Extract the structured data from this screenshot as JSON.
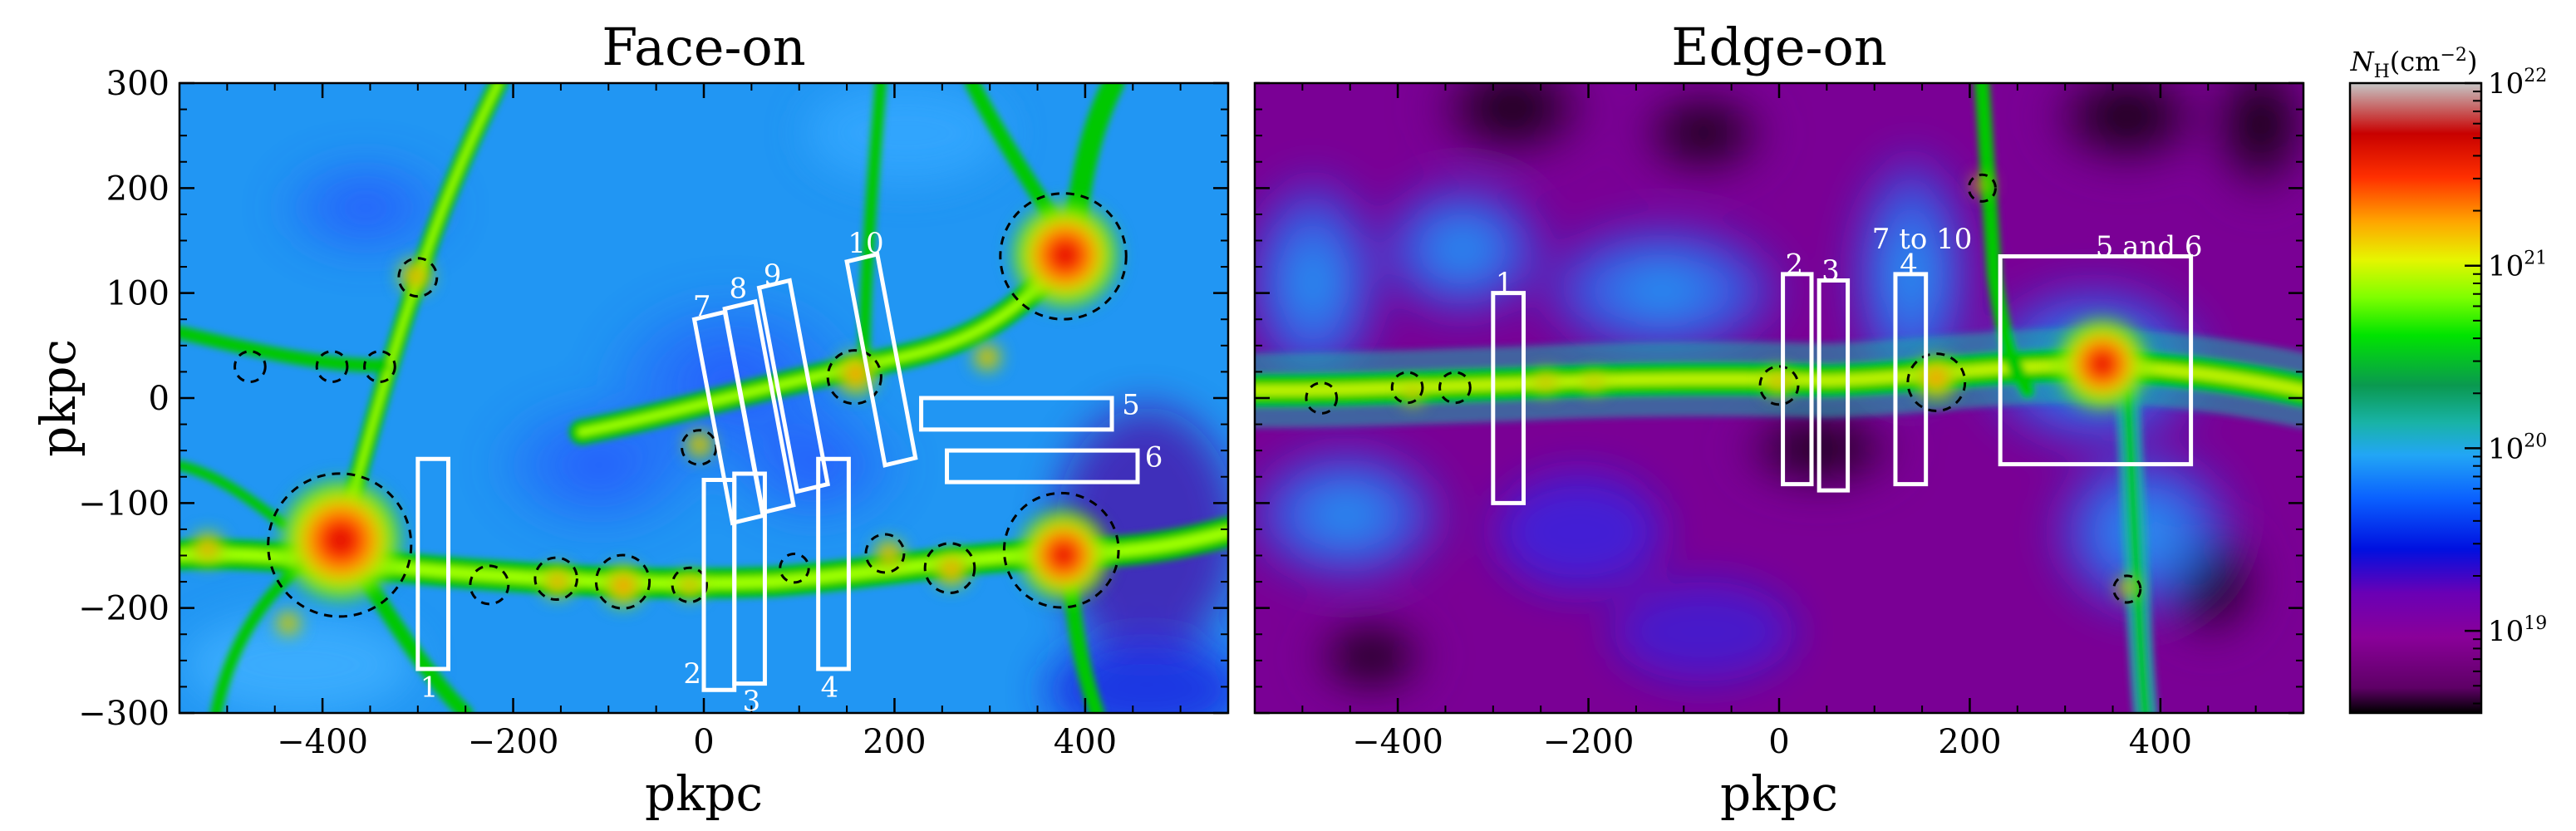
{
  "panels": [
    {
      "title": "Face-on",
      "xlabel": "pkpc",
      "ylabel": "pkpc",
      "xlim": [
        -550,
        550
      ],
      "ylim": [
        -300,
        300
      ],
      "xticks": [
        -400,
        -200,
        0,
        200,
        400
      ],
      "xtick_labels": [
        "−400",
        "−200",
        "0",
        "200",
        "400"
      ],
      "yticks": [
        -300,
        -200,
        -100,
        0,
        100,
        200,
        300
      ],
      "ytick_labels": [
        "−300",
        "−200",
        "−100",
        "0",
        "100",
        "200",
        "300"
      ],
      "boxes": [
        {
          "label": "1",
          "corners": [
            [
              -300,
              -258
            ],
            [
              -268,
              -258
            ],
            [
              -268,
              -58
            ],
            [
              -300,
              -58
            ]
          ],
          "label_at": [
            -288,
            -275
          ]
        },
        {
          "label": "2",
          "corners": [
            [
              0,
              -278
            ],
            [
              32,
              -278
            ],
            [
              32,
              -78
            ],
            [
              0,
              -78
            ]
          ],
          "label_at": [
            -12,
            -262
          ]
        },
        {
          "label": "3",
          "corners": [
            [
              32,
              -272
            ],
            [
              64,
              -272
            ],
            [
              64,
              -72
            ],
            [
              32,
              -72
            ]
          ],
          "label_at": [
            50,
            -288
          ]
        },
        {
          "label": "4",
          "corners": [
            [
              120,
              -258
            ],
            [
              152,
              -258
            ],
            [
              152,
              -58
            ],
            [
              120,
              -58
            ]
          ],
          "label_at": [
            132,
            -275
          ]
        },
        {
          "label": "5",
          "corners": [
            [
              228,
              -30
            ],
            [
              428,
              -30
            ],
            [
              428,
              0
            ],
            [
              228,
              0
            ]
          ],
          "label_at": [
            448,
            -6
          ]
        },
        {
          "label": "6",
          "corners": [
            [
              255,
              -80
            ],
            [
              455,
              -80
            ],
            [
              455,
              -50
            ],
            [
              255,
              -50
            ]
          ],
          "label_at": [
            472,
            -56
          ]
        },
        {
          "label": "7",
          "corners": [
            [
              -10,
              75
            ],
            [
              22,
              82
            ],
            [
              62,
              -112
            ],
            [
              30,
              -119
            ]
          ],
          "label_at": [
            -2,
            88
          ]
        },
        {
          "label": "8",
          "corners": [
            [
              22,
              85
            ],
            [
              54,
              92
            ],
            [
              94,
              -102
            ],
            [
              62,
              -109
            ]
          ],
          "label_at": [
            36,
            105
          ]
        },
        {
          "label": "9",
          "corners": [
            [
              58,
              105
            ],
            [
              90,
              112
            ],
            [
              130,
              -82
            ],
            [
              98,
              -89
            ]
          ],
          "label_at": [
            72,
            118
          ]
        },
        {
          "label": "10",
          "corners": [
            [
              150,
              130
            ],
            [
              182,
              137
            ],
            [
              222,
              -57
            ],
            [
              190,
              -64
            ]
          ],
          "label_at": [
            170,
            148
          ]
        }
      ],
      "halos": [
        {
          "x": -382,
          "y": -140,
          "r": 75
        },
        {
          "x": 377,
          "y": 135,
          "r": 66
        },
        {
          "x": 375,
          "y": -145,
          "r": 60
        },
        {
          "x": -300,
          "y": 115,
          "r": 20
        },
        {
          "x": -476,
          "y": 30,
          "r": 16
        },
        {
          "x": -390,
          "y": 30,
          "r": 16
        },
        {
          "x": -340,
          "y": 30,
          "r": 16
        },
        {
          "x": -225,
          "y": -178,
          "r": 20
        },
        {
          "x": -155,
          "y": -172,
          "r": 22
        },
        {
          "x": -85,
          "y": -175,
          "r": 28
        },
        {
          "x": -15,
          "y": -178,
          "r": 18
        },
        {
          "x": -5,
          "y": -47,
          "r": 18
        },
        {
          "x": 95,
          "y": -162,
          "r": 15
        },
        {
          "x": 190,
          "y": -148,
          "r": 20
        },
        {
          "x": 258,
          "y": -162,
          "r": 26
        },
        {
          "x": 158,
          "y": 20,
          "r": 28
        }
      ]
    },
    {
      "title": "Edge-on",
      "xlabel": "pkpc",
      "xlim": [
        -550,
        550
      ],
      "ylim": [
        -300,
        300
      ],
      "xticks": [
        -400,
        -200,
        0,
        200,
        400
      ],
      "xtick_labels": [
        "−400",
        "−200",
        "0",
        "200",
        "400"
      ],
      "boxes": [
        {
          "label": "1",
          "corners": [
            [
              -300,
              -100
            ],
            [
              -268,
              -100
            ],
            [
              -268,
              100
            ],
            [
              -300,
              100
            ]
          ],
          "label_at": [
            -288,
            110
          ]
        },
        {
          "label": "2",
          "corners": [
            [
              4,
              -82
            ],
            [
              34,
              -82
            ],
            [
              34,
              118
            ],
            [
              4,
              118
            ]
          ],
          "label_at": [
            16,
            128
          ]
        },
        {
          "label": "3",
          "corners": [
            [
              42,
              -88
            ],
            [
              72,
              -88
            ],
            [
              72,
              112
            ],
            [
              42,
              112
            ]
          ],
          "label_at": [
            54,
            122
          ]
        },
        {
          "label": "4",
          "corners": [
            [
              122,
              -82
            ],
            [
              154,
              -82
            ],
            [
              154,
              118
            ],
            [
              122,
              118
            ]
          ],
          "label_at": [
            136,
            128
          ]
        },
        {
          "label": "5 and 6",
          "corners": [
            [
              232,
              -63
            ],
            [
              432,
              -63
            ],
            [
              432,
              135
            ],
            [
              232,
              135
            ]
          ],
          "label_at": [
            388,
            145
          ]
        }
      ],
      "annotations": [
        {
          "text": "7 to 10",
          "at": [
            150,
            152
          ]
        }
      ],
      "halos": [
        {
          "x": -480,
          "y": 0,
          "r": 16
        },
        {
          "x": -390,
          "y": 10,
          "r": 16
        },
        {
          "x": -340,
          "y": 10,
          "r": 16
        },
        {
          "x": 0,
          "y": 12,
          "r": 20
        },
        {
          "x": 165,
          "y": 15,
          "r": 30
        },
        {
          "x": 213,
          "y": 200,
          "r": 14
        },
        {
          "x": 365,
          "y": -182,
          "r": 14
        }
      ]
    }
  ],
  "colorbar": {
    "label_base": "N",
    "label_sub": "H",
    "label_unit": "(cm",
    "label_exp": "−2",
    "label_close": ")",
    "tick_base": "10",
    "tick_exps": [
      "22",
      "21",
      "20",
      "19"
    ],
    "range_log": [
      18.55,
      22.0
    ],
    "colors": [
      "#000000",
      "#5e0066",
      "#8a0099",
      "#6a00b5",
      "#0010e0",
      "#0a60ff",
      "#22a6f5",
      "#19b3a8",
      "#0a9950",
      "#00e400",
      "#7fff00",
      "#e6f500",
      "#ffa500",
      "#ff3000",
      "#c80000",
      "#c6c6c6"
    ]
  }
}
